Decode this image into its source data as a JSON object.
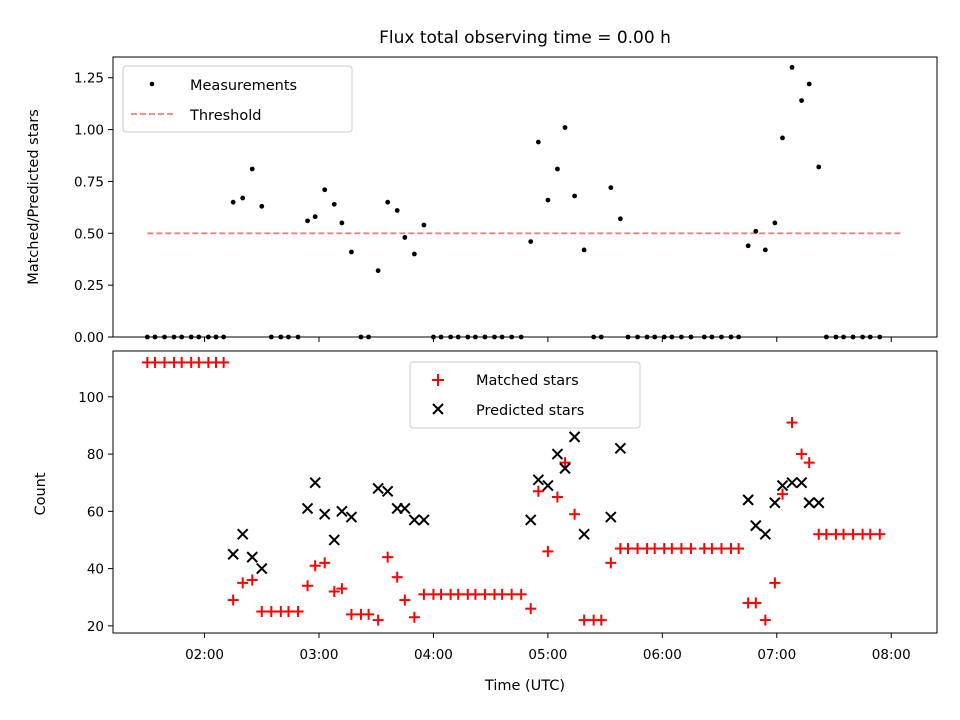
{
  "chart_data": [
    {
      "type": "scatter",
      "title": "Flux total observing time = 0.00 h",
      "xlabel": "",
      "ylabel": "Matched/Predicted stars",
      "ylim": [
        0,
        1.35
      ],
      "yticks": [
        "0.00",
        "0.25",
        "0.50",
        "0.75",
        "1.00",
        "1.25"
      ],
      "xticks_hidden": true,
      "legend": {
        "placement": "upper-left",
        "entries": [
          "Measurements",
          "Threshold"
        ]
      },
      "threshold": {
        "name": "Threshold",
        "value": 0.5,
        "x_start": "01:30",
        "x_end": "08:05",
        "color": "#f08080",
        "style": "dashed"
      },
      "series": [
        {
          "name": "Measurements",
          "color": "#000000",
          "marker": "dot",
          "points": [
            [
              "01:30",
              0
            ],
            [
              "01:34",
              0
            ],
            [
              "01:39",
              0
            ],
            [
              "01:44",
              0
            ],
            [
              "01:48",
              0
            ],
            [
              "01:53",
              0
            ],
            [
              "01:57",
              0
            ],
            [
              "02:02",
              0
            ],
            [
              "02:06",
              0
            ],
            [
              "02:10",
              0
            ],
            [
              "02:15",
              0.65
            ],
            [
              "02:20",
              0.67
            ],
            [
              "02:25",
              0.81
            ],
            [
              "02:30",
              0.63
            ],
            [
              "02:35",
              0
            ],
            [
              "02:40",
              0
            ],
            [
              "02:44",
              0
            ],
            [
              "02:49",
              0
            ],
            [
              "02:54",
              0.56
            ],
            [
              "02:58",
              0.58
            ],
            [
              "03:03",
              0.71
            ],
            [
              "03:08",
              0.64
            ],
            [
              "03:12",
              0.55
            ],
            [
              "03:17",
              0.41
            ],
            [
              "03:22",
              0
            ],
            [
              "03:26",
              0
            ],
            [
              "03:31",
              0.32
            ],
            [
              "03:36",
              0.65
            ],
            [
              "03:41",
              0.61
            ],
            [
              "03:45",
              0.48
            ],
            [
              "03:50",
              0.4
            ],
            [
              "03:55",
              0.54
            ],
            [
              "04:00",
              0
            ],
            [
              "04:04",
              0
            ],
            [
              "04:09",
              0
            ],
            [
              "04:13",
              0
            ],
            [
              "04:18",
              0
            ],
            [
              "04:22",
              0
            ],
            [
              "04:27",
              0
            ],
            [
              "04:32",
              0
            ],
            [
              "04:36",
              0
            ],
            [
              "04:41",
              0
            ],
            [
              "04:46",
              0
            ],
            [
              "04:51",
              0.46
            ],
            [
              "04:55",
              0.94
            ],
            [
              "05:00",
              0.66
            ],
            [
              "05:05",
              0.81
            ],
            [
              "05:09",
              1.01
            ],
            [
              "05:14",
              0.68
            ],
            [
              "05:19",
              0.42
            ],
            [
              "05:24",
              0
            ],
            [
              "05:28",
              0
            ],
            [
              "05:33",
              0.72
            ],
            [
              "05:38",
              0.57
            ],
            [
              "05:42",
              0
            ],
            [
              "05:47",
              0
            ],
            [
              "05:52",
              0
            ],
            [
              "05:56",
              0
            ],
            [
              "06:01",
              0
            ],
            [
              "06:05",
              0
            ],
            [
              "06:10",
              0
            ],
            [
              "06:15",
              0
            ],
            [
              "06:22",
              0
            ],
            [
              "06:26",
              0
            ],
            [
              "06:31",
              0
            ],
            [
              "06:36",
              0
            ],
            [
              "06:40",
              0
            ],
            [
              "06:45",
              0.44
            ],
            [
              "06:49",
              0.51
            ],
            [
              "06:54",
              0.42
            ],
            [
              "06:59",
              0.55
            ],
            [
              "07:03",
              0.96
            ],
            [
              "07:08",
              1.3
            ],
            [
              "07:13",
              1.14
            ],
            [
              "07:17",
              1.22
            ],
            [
              "07:22",
              0.82
            ],
            [
              "07:26",
              0
            ],
            [
              "07:31",
              0
            ],
            [
              "07:35",
              0
            ],
            [
              "07:40",
              0
            ],
            [
              "07:45",
              0
            ],
            [
              "07:49",
              0
            ],
            [
              "07:54",
              0
            ]
          ]
        }
      ]
    },
    {
      "type": "scatter",
      "title": "",
      "xlabel": "Time (UTC)",
      "ylabel": "Count",
      "ylim": [
        17.5,
        116
      ],
      "yticks": [
        "20",
        "40",
        "60",
        "80",
        "100"
      ],
      "xticks": [
        "02:00",
        "03:00",
        "04:00",
        "05:00",
        "06:00",
        "07:00",
        "08:00"
      ],
      "legend": {
        "placement": "upper-center",
        "entries": [
          "Matched stars",
          "Predicted stars"
        ]
      },
      "series": [
        {
          "name": "Matched stars",
          "color": "#ff0000",
          "marker": "plus",
          "points": [
            [
              "01:30",
              112
            ],
            [
              "01:34",
              112
            ],
            [
              "01:39",
              112
            ],
            [
              "01:44",
              112
            ],
            [
              "01:48",
              112
            ],
            [
              "01:53",
              112
            ],
            [
              "01:57",
              112
            ],
            [
              "02:02",
              112
            ],
            [
              "02:06",
              112
            ],
            [
              "02:10",
              112
            ],
            [
              "02:15",
              29
            ],
            [
              "02:20",
              35
            ],
            [
              "02:25",
              36
            ],
            [
              "02:30",
              25
            ],
            [
              "02:35",
              25
            ],
            [
              "02:40",
              25
            ],
            [
              "02:44",
              25
            ],
            [
              "02:49",
              25
            ],
            [
              "02:54",
              34
            ],
            [
              "02:58",
              41
            ],
            [
              "03:03",
              42
            ],
            [
              "03:08",
              32
            ],
            [
              "03:12",
              33
            ],
            [
              "03:17",
              24
            ],
            [
              "03:22",
              24
            ],
            [
              "03:26",
              24
            ],
            [
              "03:31",
              22
            ],
            [
              "03:36",
              44
            ],
            [
              "03:41",
              37
            ],
            [
              "03:45",
              29
            ],
            [
              "03:50",
              23
            ],
            [
              "03:55",
              31
            ],
            [
              "04:00",
              31
            ],
            [
              "04:04",
              31
            ],
            [
              "04:09",
              31
            ],
            [
              "04:13",
              31
            ],
            [
              "04:18",
              31
            ],
            [
              "04:22",
              31
            ],
            [
              "04:27",
              31
            ],
            [
              "04:32",
              31
            ],
            [
              "04:36",
              31
            ],
            [
              "04:41",
              31
            ],
            [
              "04:46",
              31
            ],
            [
              "04:51",
              26
            ],
            [
              "04:55",
              67
            ],
            [
              "05:00",
              46
            ],
            [
              "05:05",
              65
            ],
            [
              "05:09",
              77
            ],
            [
              "05:14",
              59
            ],
            [
              "05:19",
              22
            ],
            [
              "05:24",
              22
            ],
            [
              "05:28",
              22
            ],
            [
              "05:33",
              42
            ],
            [
              "05:38",
              47
            ],
            [
              "05:42",
              47
            ],
            [
              "05:47",
              47
            ],
            [
              "05:52",
              47
            ],
            [
              "05:56",
              47
            ],
            [
              "06:01",
              47
            ],
            [
              "06:05",
              47
            ],
            [
              "06:10",
              47
            ],
            [
              "06:15",
              47
            ],
            [
              "06:22",
              47
            ],
            [
              "06:26",
              47
            ],
            [
              "06:31",
              47
            ],
            [
              "06:36",
              47
            ],
            [
              "06:40",
              47
            ],
            [
              "06:45",
              28
            ],
            [
              "06:49",
              28
            ],
            [
              "06:54",
              22
            ],
            [
              "06:59",
              35
            ],
            [
              "07:03",
              66
            ],
            [
              "07:08",
              91
            ],
            [
              "07:13",
              80
            ],
            [
              "07:17",
              77
            ],
            [
              "07:22",
              52
            ],
            [
              "07:26",
              52
            ],
            [
              "07:31",
              52
            ],
            [
              "07:35",
              52
            ],
            [
              "07:40",
              52
            ],
            [
              "07:45",
              52
            ],
            [
              "07:49",
              52
            ],
            [
              "07:54",
              52
            ]
          ]
        },
        {
          "name": "Predicted stars",
          "color": "#000000",
          "marker": "x",
          "points": [
            [
              "02:15",
              45
            ],
            [
              "02:20",
              52
            ],
            [
              "02:25",
              44
            ],
            [
              "02:30",
              40
            ],
            [
              "02:54",
              61
            ],
            [
              "02:58",
              70
            ],
            [
              "03:03",
              59
            ],
            [
              "03:08",
              50
            ],
            [
              "03:12",
              60
            ],
            [
              "03:17",
              58
            ],
            [
              "03:31",
              68
            ],
            [
              "03:36",
              67
            ],
            [
              "03:41",
              61
            ],
            [
              "03:45",
              61
            ],
            [
              "03:50",
              57
            ],
            [
              "03:55",
              57
            ],
            [
              "04:51",
              57
            ],
            [
              "04:55",
              71
            ],
            [
              "05:00",
              69
            ],
            [
              "05:05",
              80
            ],
            [
              "05:09",
              75
            ],
            [
              "05:14",
              86
            ],
            [
              "05:19",
              52
            ],
            [
              "05:33",
              58
            ],
            [
              "05:38",
              82
            ],
            [
              "06:45",
              64
            ],
            [
              "06:49",
              55
            ],
            [
              "06:54",
              52
            ],
            [
              "06:59",
              63
            ],
            [
              "07:03",
              69
            ],
            [
              "07:08",
              70
            ],
            [
              "07:13",
              70
            ],
            [
              "07:17",
              63
            ],
            [
              "07:22",
              63
            ]
          ]
        }
      ]
    }
  ]
}
